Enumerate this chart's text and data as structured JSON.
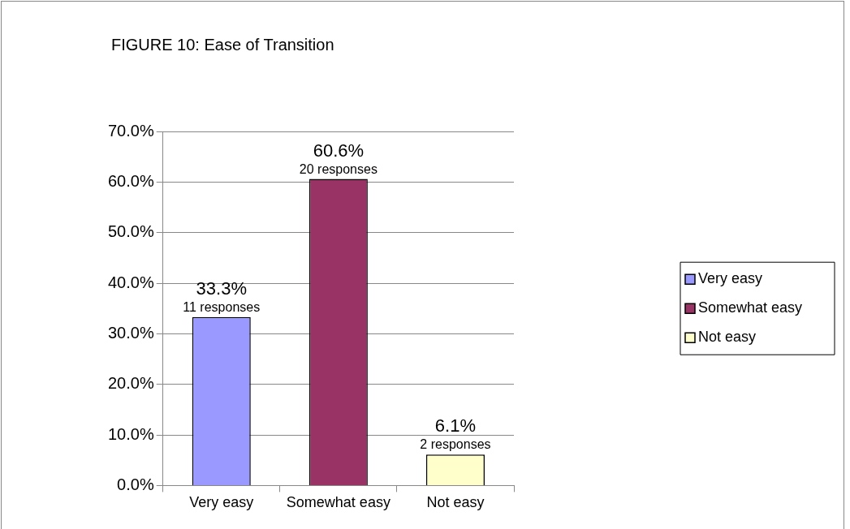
{
  "chart_data": {
    "type": "bar",
    "title": "FIGURE 10: Ease of Transition",
    "categories": [
      "Very easy",
      "Somewhat easy",
      "Not easy"
    ],
    "series": [
      {
        "name": "Very easy",
        "color": "#9999ff",
        "values": [
          33.3,
          null,
          null
        ],
        "value_labels": [
          "33.3%\n11 responses",
          null,
          null
        ]
      },
      {
        "name": "Somewhat easy",
        "color": "#993366",
        "values": [
          null,
          60.6,
          null
        ],
        "value_labels": [
          null,
          "60.6%\n20 responses",
          null
        ]
      },
      {
        "name": "Not easy",
        "color": "#ffffcc",
        "values": [
          null,
          null,
          6.1
        ],
        "value_labels": [
          null,
          null,
          "6.1%\n2 responses"
        ]
      }
    ],
    "ylim": [
      0,
      70
    ],
    "yticks": [
      {
        "value": 0,
        "label": "0.0%"
      },
      {
        "value": 10,
        "label": "10.0%"
      },
      {
        "value": 20,
        "label": "20.0%"
      },
      {
        "value": 30,
        "label": "30.0%"
      },
      {
        "value": 40,
        "label": "40.0%"
      },
      {
        "value": 50,
        "label": "50.0%"
      },
      {
        "value": 60,
        "label": "60.0%"
      },
      {
        "value": 70,
        "label": "70.0%"
      }
    ],
    "grid": "y",
    "legend": "right"
  }
}
